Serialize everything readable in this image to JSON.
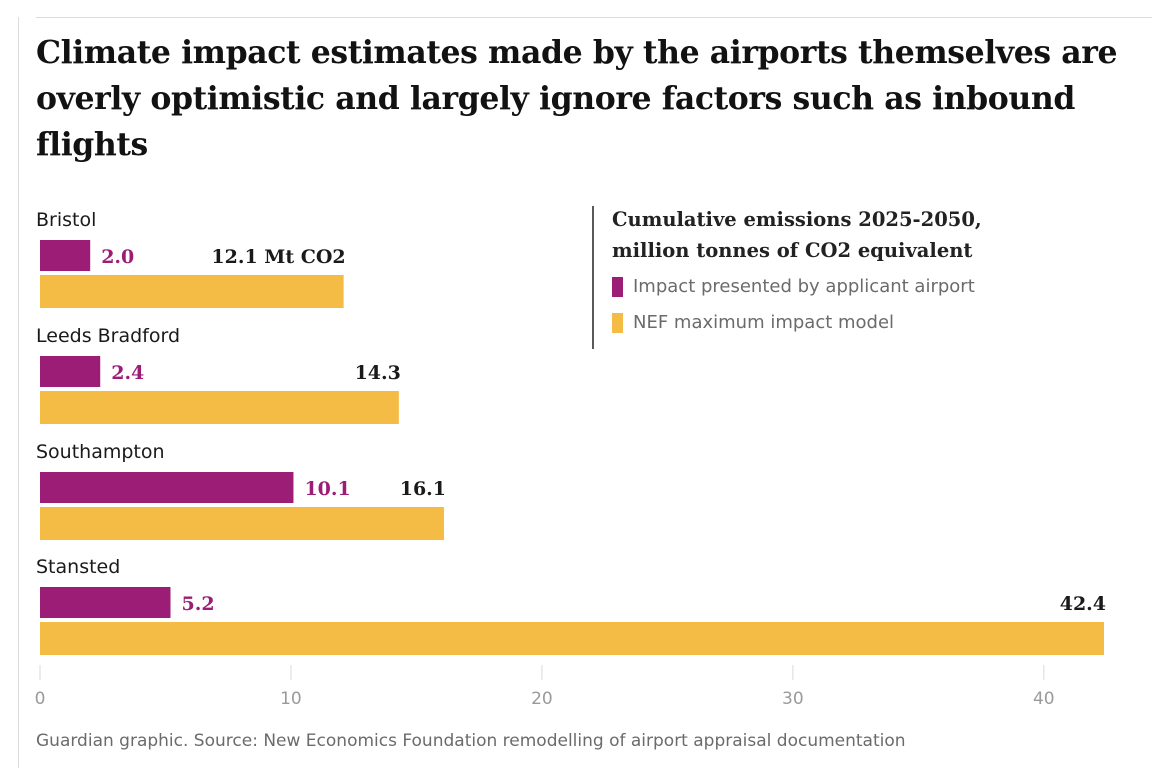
{
  "title": "Climate impact estimates made by the airports themselves are overly optimistic and largely ignore factors such as inbound flights",
  "legend": {
    "title_line1": "Cumulative emissions 2025-2050,",
    "title_line2": "million tonnes of CO2 equivalent",
    "items": [
      {
        "label": "Impact presented by applicant airport",
        "color": "#9b1d75"
      },
      {
        "label": "NEF maximum impact model",
        "color": "#f4bc45"
      }
    ]
  },
  "footer": "Guardian graphic. Source: New Economics Foundation remodelling of airport appraisal documentation",
  "colors": {
    "purple": "#9b1d75",
    "yellow": "#f4bc45",
    "grid": "#e6e6e6",
    "tick": "#9a9a9a"
  },
  "chart_data": {
    "type": "bar",
    "orientation": "horizontal",
    "title": "Climate impact estimates made by the airports themselves are overly optimistic and largely ignore factors such as inbound flights",
    "xlabel": "Cumulative emissions 2025-2050, million tonnes of CO2 equivalent",
    "xlim": [
      0,
      42.4
    ],
    "xticks": [
      0,
      10,
      20,
      30,
      40
    ],
    "categories": [
      "Bristol",
      "Leeds Bradford",
      "Southampton",
      "Stansted"
    ],
    "series": [
      {
        "name": "Impact presented by applicant airport",
        "values": [
          2.0,
          2.4,
          10.1,
          5.2
        ],
        "labels": [
          "2.0",
          "2.4",
          "10.1",
          "5.2"
        ]
      },
      {
        "name": "NEF maximum impact model",
        "values": [
          12.1,
          14.3,
          16.1,
          42.4
        ],
        "labels": [
          "12.1 Mt CO2",
          "14.3",
          "16.1",
          "42.4"
        ]
      }
    ]
  }
}
